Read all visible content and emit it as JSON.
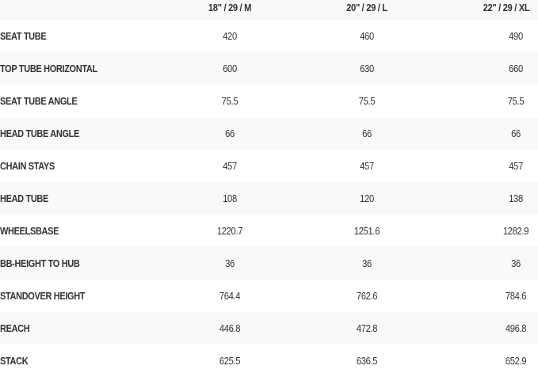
{
  "table": {
    "headers": [
      "",
      "18\" / 29 / M",
      "20\" / 29 / L",
      "22\" / 29 / XL"
    ],
    "rows": [
      {
        "label": "SEAT TUBE",
        "values": [
          "420",
          "460",
          "490"
        ]
      },
      {
        "label": "TOP TUBE HORIZONTAL",
        "values": [
          "600",
          "630",
          "660"
        ]
      },
      {
        "label": "SEAT TUBE ANGLE",
        "values": [
          "75.5",
          "75.5",
          "75.5"
        ]
      },
      {
        "label": "HEAD TUBE ANGLE",
        "values": [
          "66",
          "66",
          "66"
        ]
      },
      {
        "label": "CHAIN STAYS",
        "values": [
          "457",
          "457",
          "457"
        ]
      },
      {
        "label": "HEAD TUBE",
        "values": [
          "108",
          "120",
          "138"
        ]
      },
      {
        "label": "WHEELSBASE",
        "values": [
          "1220.7",
          "1251.6",
          "1282.9"
        ]
      },
      {
        "label": "BB-HEIGHT TO HUB",
        "values": [
          "36",
          "36",
          "36"
        ]
      },
      {
        "label": "STANDOVER HEIGHT",
        "values": [
          "764.4",
          "762.6",
          "784.6"
        ]
      },
      {
        "label": "REACH",
        "values": [
          "446.8",
          "472.8",
          "496.8"
        ]
      },
      {
        "label": "STACK",
        "values": [
          "625.5",
          "636.5",
          "652.9"
        ]
      }
    ]
  }
}
